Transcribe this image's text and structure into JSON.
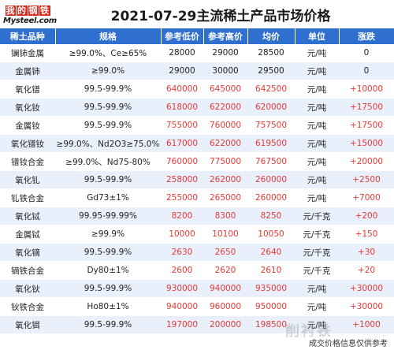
{
  "logo": {
    "top_chars": [
      "我",
      "的",
      "钢",
      "铁"
    ],
    "bottom": "Mysteel.com"
  },
  "title": "2021-07-29主流稀土产品市场价格",
  "colors": {
    "header_bg": "#2f6fd0",
    "stripe": "#e9f0fb",
    "up": "#e53935"
  },
  "table": {
    "headers": [
      "稀土品种",
      "规格",
      "参考低价",
      "参考高价",
      "均价",
      "单位",
      "涨跌"
    ],
    "rows": [
      [
        "镧铈金属",
        "≥99.0%、Ce≥65%",
        "28000",
        "29000",
        "28500",
        "元/吨",
        "0"
      ],
      [
        "金属铈",
        "≥99.0%",
        "29000",
        "30000",
        "29500",
        "元/吨",
        "0"
      ],
      [
        "氧化镨",
        "99.5-99.9%",
        "640000",
        "645000",
        "642500",
        "元/吨",
        "+10000"
      ],
      [
        "氧化钕",
        "99.5-99.9%",
        "618000",
        "622000",
        "620000",
        "元/吨",
        "+17500"
      ],
      [
        "金属钕",
        "99.5-99.9%",
        "755000",
        "760000",
        "757500",
        "元/吨",
        "+17500"
      ],
      [
        "氧化镨钕",
        "≥99.0%、Nd2O3≥75.0%",
        "617000",
        "622000",
        "619500",
        "元/吨",
        "+15000"
      ],
      [
        "镨钕合金",
        "≥99.0%、Nd75-80%",
        "760000",
        "775000",
        "767500",
        "元/吨",
        "+20000"
      ],
      [
        "氧化钆",
        "99.5-99.9%",
        "258000",
        "262000",
        "260000",
        "元/吨",
        "+2500"
      ],
      [
        "钆铁合金",
        "Gd73±1%",
        "255000",
        "265000",
        "260000",
        "元/吨",
        "+7000"
      ],
      [
        "氧化铽",
        "99.95-99.99%",
        "8200",
        "8300",
        "8250",
        "元/千克",
        "+200"
      ],
      [
        "金属铽",
        "≥99.9%",
        "10000",
        "10100",
        "10050",
        "元/千克",
        "+150"
      ],
      [
        "氧化镝",
        "99.5-99.9%",
        "2630",
        "2650",
        "2640",
        "元/千克",
        "+30"
      ],
      [
        "镝铁合金",
        "Dy80±1%",
        "2600",
        "2620",
        "2610",
        "元/千克",
        "+20"
      ],
      [
        "氧化钬",
        "99.5-99.9%",
        "930000",
        "940000",
        "935000",
        "元/吨",
        "+30000"
      ],
      [
        "钬铁合金",
        "Ho80±1%",
        "940000",
        "960000",
        "950000",
        "元/吨",
        "+30000"
      ],
      [
        "氧化铒",
        "99.5-99.9%",
        "197000",
        "200000",
        "198500",
        "元/吨",
        "+1000"
      ]
    ]
  },
  "footer_note": "成交价格信息仅供参考",
  "watermark": "削衬铁"
}
